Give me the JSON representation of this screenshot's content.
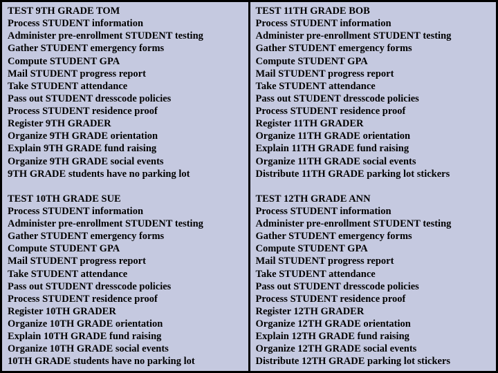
{
  "background_color": "#c5c9e0",
  "border_color": "#000000",
  "font_family": "Times New Roman",
  "font_weight": "bold",
  "font_size_pt": 11,
  "layout": "2x2",
  "blocks": {
    "top_left": {
      "title": "TEST 9TH GRADE TOM",
      "lines": [
        "Process STUDENT information",
        "Administer pre-enrollment STUDENT testing",
        "Gather STUDENT emergency forms",
        "Compute STUDENT GPA",
        "Mail STUDENT progress report",
        "Take STUDENT attendance",
        "Pass out STUDENT dresscode policies",
        "Process STUDENT residence proof",
        "Register 9TH GRADER",
        "Organize 9TH GRADE orientation",
        "Explain 9TH GRADE fund raising",
        "Organize 9TH GRADE social events",
        "9TH GRADE students have no parking lot"
      ]
    },
    "bottom_left": {
      "title": "TEST 10TH GRADE SUE",
      "lines": [
        "Process STUDENT information",
        "Administer pre-enrollment STUDENT testing",
        "Gather STUDENT emergency forms",
        "Compute STUDENT GPA",
        "Mail STUDENT progress report",
        "Take STUDENT attendance",
        "Pass out STUDENT dresscode policies",
        "Process STUDENT residence proof",
        "Register 10TH GRADER",
        "Organize 10TH GRADE orientation",
        "Explain 10TH GRADE fund raising",
        "Organize 10TH GRADE social events",
        "10TH GRADE students have no parking lot"
      ]
    },
    "top_right": {
      "title": "TEST 11TH GRADE BOB",
      "lines": [
        "Process STUDENT information",
        "Administer pre-enrollment STUDENT testing",
        "Gather STUDENT emergency forms",
        "Compute STUDENT GPA",
        "Mail STUDENT progress report",
        "Take STUDENT attendance",
        "Pass out STUDENT dresscode policies",
        "Process STUDENT residence proof",
        "Register 11TH GRADER",
        "Organize 11TH GRADE orientation",
        "Explain 11TH GRADE fund raising",
        "Organize 11TH GRADE social events",
        "Distribute 11TH GRADE parking lot stickers"
      ]
    },
    "bottom_right": {
      "title": "TEST 12TH GRADE ANN",
      "lines": [
        "Process STUDENT information",
        "Administer pre-enrollment STUDENT testing",
        "Gather STUDENT emergency forms",
        "Compute STUDENT GPA",
        "Mail STUDENT progress report",
        "Take STUDENT attendance",
        "Pass out STUDENT dresscode policies",
        "Process STUDENT residence proof",
        "Register 12TH GRADER",
        "Organize 12TH GRADE orientation",
        "Explain 12TH GRADE fund raising",
        "Organize 12TH GRADE social events",
        "Distribute 12TH GRADE parking lot stickers"
      ]
    }
  }
}
